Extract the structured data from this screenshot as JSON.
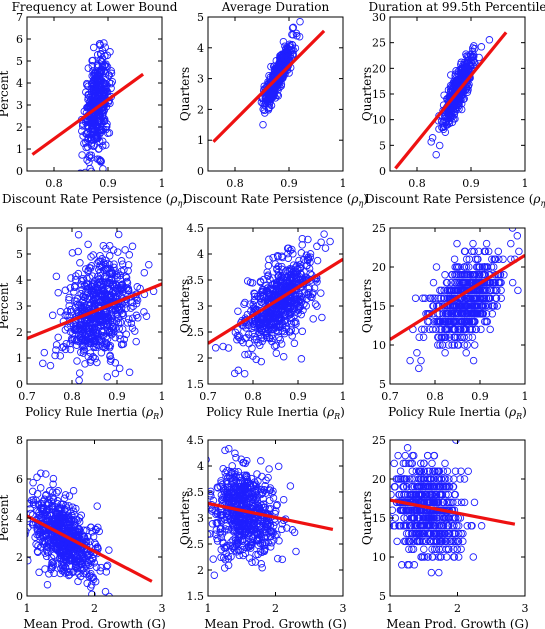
{
  "chart_data": [
    {
      "type": "scatter",
      "title": "Frequency at Lower Bound",
      "xlabel": "Discount Rate Persistence (ρη)",
      "xlabel_main": "Discount Rate Persistence (",
      "xlabel_sym": "ρ",
      "xlabel_sub": "η",
      "xlabel_close": ")",
      "ylabel": "Percent",
      "xlim": [
        0.75,
        1
      ],
      "ylim": [
        0,
        7
      ],
      "xticks": [
        0.8,
        0.9,
        1
      ],
      "yticks": [
        0,
        1,
        2,
        3,
        4,
        5,
        6,
        7
      ],
      "cloud": {
        "cx": 0.88,
        "cy": 3.0,
        "sx": 0.012,
        "sy": 1.1,
        "rho": 0.35,
        "n": 420
      },
      "fit": {
        "x": [
          0.76,
          0.965
        ],
        "y": [
          0.75,
          4.4
        ]
      },
      "color_points": "#1f1fff",
      "color_fit": "#ee1111"
    },
    {
      "type": "scatter",
      "title": "Average Duration",
      "xlabel": "Discount Rate Persistence (ρη)",
      "xlabel_main": "Discount Rate Persistence (",
      "xlabel_sym": "ρ",
      "xlabel_sub": "η",
      "xlabel_close": ")",
      "ylabel": "Quarters",
      "xlim": [
        0.75,
        1
      ],
      "ylim": [
        0,
        5
      ],
      "xticks": [
        0.8,
        0.9,
        1
      ],
      "yticks": [
        0,
        1,
        2,
        3,
        4,
        5
      ],
      "cloud": {
        "cx": 0.88,
        "cy": 3.1,
        "sx": 0.013,
        "sy": 0.5,
        "rho": 0.85,
        "n": 420
      },
      "fit": {
        "x": [
          0.76,
          0.965
        ],
        "y": [
          0.95,
          4.55
        ]
      },
      "color_points": "#1f1fff",
      "color_fit": "#ee1111"
    },
    {
      "type": "scatter",
      "title": "Duration at 99.5th Percentile",
      "xlabel": "Discount Rate Persistence (ρη)",
      "xlabel_main": "Discount Rate Persistence (",
      "xlabel_sym": "ρ",
      "xlabel_sub": "η",
      "xlabel_close": ")",
      "ylabel": "Quarters",
      "xlim": [
        0.75,
        1
      ],
      "ylim": [
        0,
        30
      ],
      "xticks": [
        0.8,
        0.9,
        1
      ],
      "yticks": [
        0,
        5,
        10,
        15,
        20,
        25,
        30
      ],
      "cloud": {
        "cx": 0.875,
        "cy": 15.5,
        "sx": 0.015,
        "sy": 3.5,
        "rho": 0.85,
        "n": 420
      },
      "fit": {
        "x": [
          0.76,
          0.965
        ],
        "y": [
          0.5,
          27
        ]
      },
      "color_points": "#1f1fff",
      "color_fit": "#ee1111"
    },
    {
      "type": "scatter",
      "title": "",
      "xlabel": "Policy Rule Inertia (ρR)",
      "xlabel_main": "Policy Rule Inertia (",
      "xlabel_sym": "ρ",
      "xlabel_sub": "R",
      "xlabel_close": ")",
      "ylabel": "Percent",
      "xlim": [
        0.7,
        1
      ],
      "ylim": [
        0,
        6
      ],
      "xticks": [
        0.7,
        0.8,
        0.9,
        1
      ],
      "yticks": [
        0,
        1,
        2,
        3,
        4,
        5,
        6
      ],
      "cloud": {
        "cx": 0.86,
        "cy": 2.8,
        "sx": 0.04,
        "sy": 0.95,
        "rho": 0.3,
        "n": 650
      },
      "fit": {
        "x": [
          0.7,
          1.0
        ],
        "y": [
          1.75,
          3.85
        ]
      },
      "color_points": "#1f1fff",
      "color_fit": "#ee1111"
    },
    {
      "type": "scatter",
      "title": "",
      "xlabel": "Policy Rule Inertia (ρR)",
      "xlabel_main": "Policy Rule Inertia (",
      "xlabel_sym": "ρ",
      "xlabel_sub": "R",
      "xlabel_close": ")",
      "ylabel": "Quarters",
      "xlim": [
        0.7,
        1
      ],
      "ylim": [
        1.5,
        4.5
      ],
      "xticks": [
        0.7,
        0.8,
        0.9,
        1
      ],
      "yticks": [
        1.5,
        2,
        2.5,
        3,
        3.5,
        4,
        4.5
      ],
      "cloud": {
        "cx": 0.86,
        "cy": 3.1,
        "sx": 0.04,
        "sy": 0.45,
        "rho": 0.55,
        "n": 650
      },
      "fit": {
        "x": [
          0.7,
          1.0
        ],
        "y": [
          2.28,
          3.9
        ]
      },
      "color_points": "#1f1fff",
      "color_fit": "#ee1111"
    },
    {
      "type": "scatter",
      "title": "",
      "xlabel": "Policy Rule Inertia (ρR)",
      "xlabel_main": "Policy Rule Inertia (",
      "xlabel_sym": "ρ",
      "xlabel_sub": "R",
      "xlabel_close": ")",
      "ylabel": "Quarters",
      "xlim": [
        0.7,
        1
      ],
      "ylim": [
        5,
        25
      ],
      "xticks": [
        0.7,
        0.8,
        0.9,
        1
      ],
      "yticks": [
        5,
        10,
        15,
        20,
        25
      ],
      "cloud": {
        "cx": 0.87,
        "cy": 16,
        "sx": 0.04,
        "sy": 3.0,
        "rho": 0.55,
        "n": 650,
        "round": 1
      },
      "fit": {
        "x": [
          0.7,
          1.0
        ],
        "y": [
          10.7,
          21.5
        ]
      },
      "color_points": "#1f1fff",
      "color_fit": "#ee1111"
    },
    {
      "type": "scatter",
      "title": "",
      "xlabel": "Mean Prod. Growth (G)",
      "xlabel_main": "Mean Prod. Growth (G)",
      "xlabel_sym": "",
      "xlabel_sub": "",
      "xlabel_close": "",
      "ylabel": "Percent",
      "xlim": [
        1,
        3
      ],
      "ylim": [
        0,
        8
      ],
      "xticks": [
        1,
        2,
        3
      ],
      "yticks": [
        0,
        2,
        4,
        6,
        8
      ],
      "cloud": {
        "cx": 1.55,
        "cy": 3.0,
        "sx": 0.25,
        "sy": 1.1,
        "rho": -0.5,
        "n": 650
      },
      "fit": {
        "x": [
          1.0,
          2.85
        ],
        "y": [
          4.1,
          0.75
        ]
      },
      "color_points": "#1f1fff",
      "color_fit": "#ee1111"
    },
    {
      "type": "scatter",
      "title": "",
      "xlabel": "Mean Prod. Growth (G)",
      "xlabel_main": "Mean Prod. Growth (G)",
      "xlabel_sym": "",
      "xlabel_sub": "",
      "xlabel_close": "",
      "ylabel": "Quarters",
      "xlim": [
        1,
        3
      ],
      "ylim": [
        1.5,
        4.5
      ],
      "xticks": [
        1,
        2,
        3
      ],
      "yticks": [
        1.5,
        2,
        2.5,
        3,
        3.5,
        4,
        4.5
      ],
      "cloud": {
        "cx": 1.55,
        "cy": 3.1,
        "sx": 0.25,
        "sy": 0.42,
        "rho": -0.15,
        "n": 650
      },
      "fit": {
        "x": [
          1.0,
          2.85
        ],
        "y": [
          3.28,
          2.78
        ]
      },
      "color_points": "#1f1fff",
      "color_fit": "#ee1111"
    },
    {
      "type": "scatter",
      "title": "",
      "xlabel": "Mean Prod. Growth (G)",
      "xlabel_main": "Mean Prod. Growth (G)",
      "xlabel_sym": "",
      "xlabel_sub": "",
      "xlabel_close": "",
      "ylabel": "Quarters",
      "xlim": [
        1,
        3
      ],
      "ylim": [
        5,
        25
      ],
      "xticks": [
        1,
        2,
        3
      ],
      "yticks": [
        5,
        10,
        15,
        20,
        25
      ],
      "cloud": {
        "cx": 1.55,
        "cy": 16,
        "sx": 0.25,
        "sy": 3.0,
        "rho": -0.15,
        "n": 650,
        "round": 1
      },
      "fit": {
        "x": [
          1.0,
          2.85
        ],
        "y": [
          17.3,
          14.2
        ]
      },
      "color_points": "#1f1fff",
      "color_fit": "#ee1111"
    }
  ]
}
